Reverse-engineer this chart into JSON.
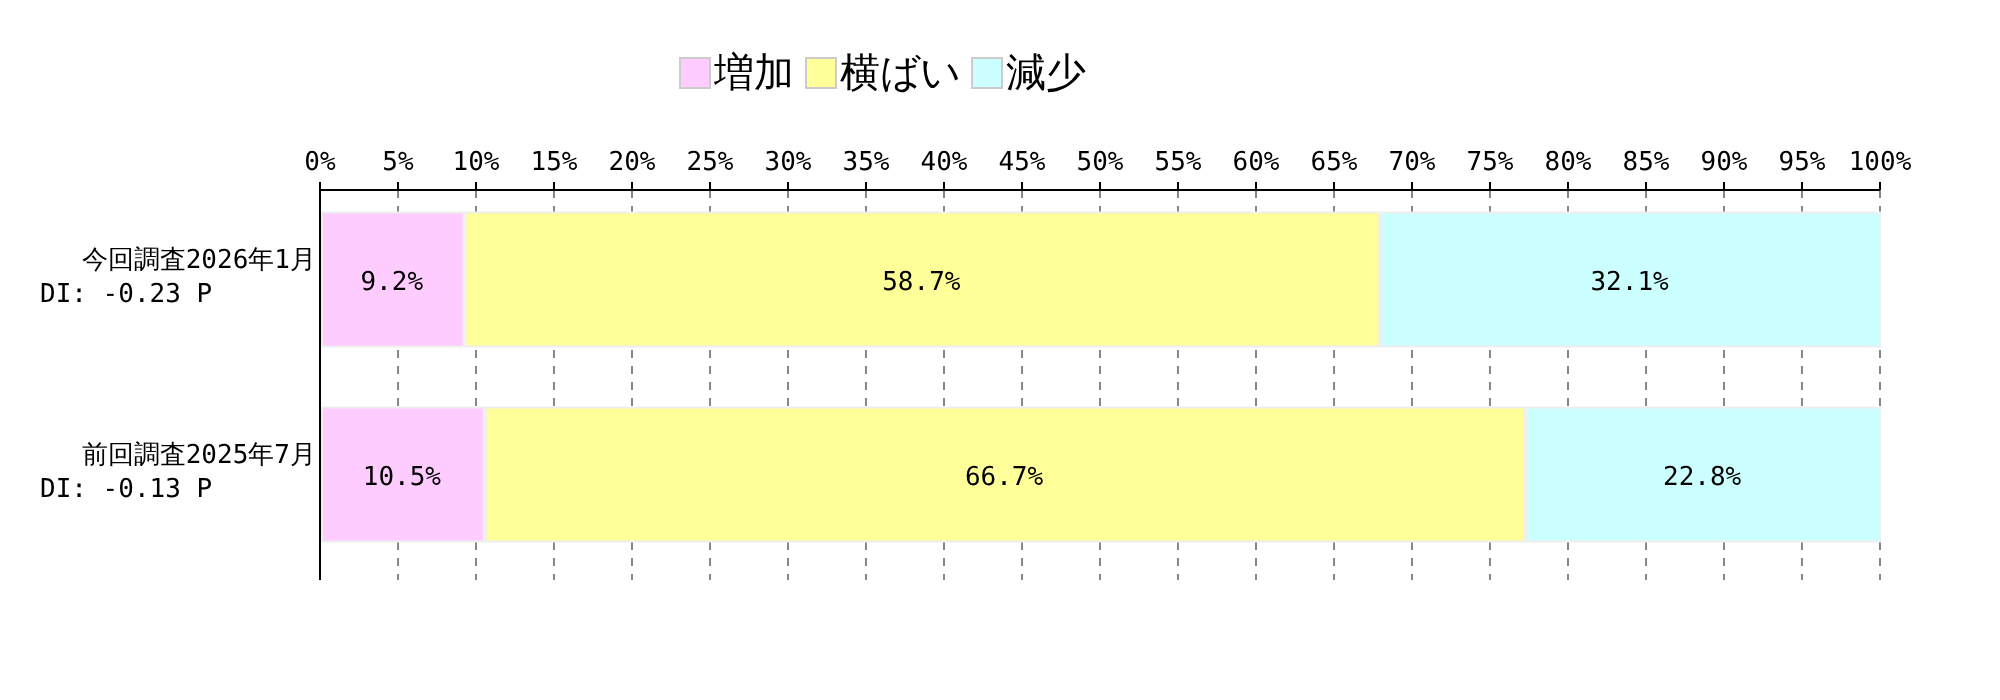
{
  "chart_data": {
    "type": "bar",
    "orientation": "horizontal",
    "stacked": true,
    "categories": [
      "今回調査2026年1月\nDI: -0.23 P",
      "前回調査2025年7月\nDI: -0.13 P"
    ],
    "series": [
      {
        "name": "増加",
        "color": "#ffccff",
        "values": [
          9.2,
          10.5
        ],
        "value_labels": [
          "9.2%",
          "10.5%"
        ]
      },
      {
        "name": "横ばい",
        "color": "#ffff99",
        "values": [
          58.7,
          66.7
        ],
        "value_labels": [
          "58.7%",
          "66.7%"
        ]
      },
      {
        "name": "減少",
        "color": "#ccffff",
        "values": [
          32.1,
          22.8
        ],
        "value_labels": [
          "32.1%",
          "22.8%"
        ]
      }
    ],
    "xlim": [
      0,
      100
    ],
    "xticks": [
      {
        "value": 0,
        "label": "0%"
      },
      {
        "value": 5,
        "label": "5%"
      },
      {
        "value": 10,
        "label": "10%"
      },
      {
        "value": 15,
        "label": "15%"
      },
      {
        "value": 20,
        "label": "20%"
      },
      {
        "value": 25,
        "label": "25%"
      },
      {
        "value": 30,
        "label": "30%"
      },
      {
        "value": 35,
        "label": "35%"
      },
      {
        "value": 40,
        "label": "40%"
      },
      {
        "value": 45,
        "label": "45%"
      },
      {
        "value": 50,
        "label": "50%"
      },
      {
        "value": 55,
        "label": "55%"
      },
      {
        "value": 60,
        "label": "60%"
      },
      {
        "value": 65,
        "label": "65%"
      },
      {
        "value": 70,
        "label": "70%"
      },
      {
        "value": 75,
        "label": "75%"
      },
      {
        "value": 80,
        "label": "80%"
      },
      {
        "value": 85,
        "label": "85%"
      },
      {
        "value": 90,
        "label": "90%"
      },
      {
        "value": 95,
        "label": "95%"
      },
      {
        "value": 100,
        "label": "100%"
      }
    ],
    "grid": "x",
    "legend": "top"
  }
}
